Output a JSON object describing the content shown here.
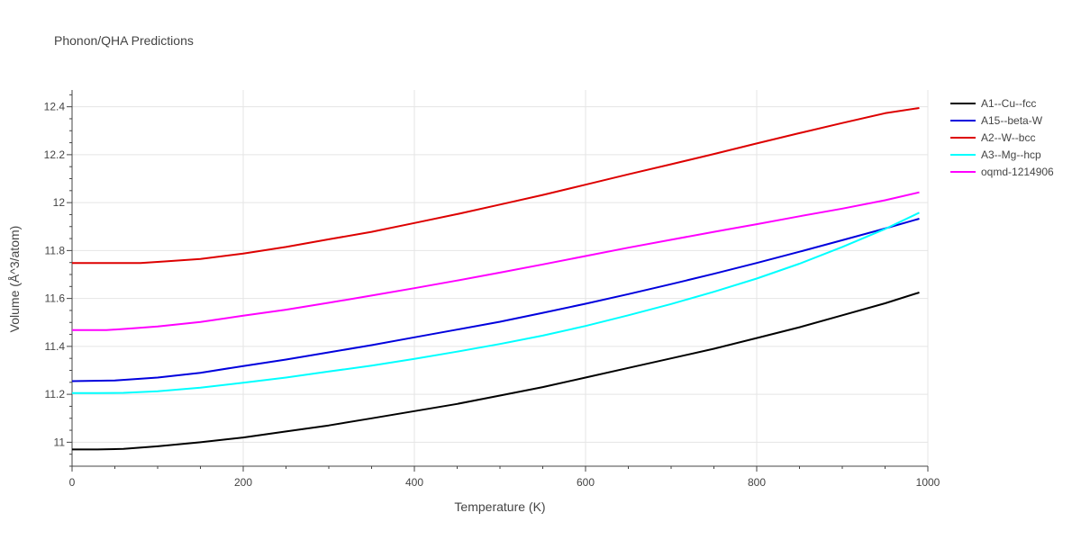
{
  "chart_data": {
    "type": "line",
    "title": "Phonon/QHA Predictions",
    "xlabel": "Temperature (K)",
    "ylabel": "Volume (Å^3/atom)",
    "xlim": [
      0,
      1000
    ],
    "ylim": [
      10.9,
      12.47
    ],
    "xticks": [
      0,
      200,
      400,
      600,
      800,
      1000
    ],
    "xtick_labels": [
      "0",
      "200",
      "400",
      "600",
      "800",
      "1000"
    ],
    "yticks": [
      11,
      11.2,
      11.4,
      11.6,
      11.8,
      12,
      12.2,
      12.4
    ],
    "ytick_labels": [
      "11",
      "11.2",
      "11.4",
      "11.6",
      "11.8",
      "12",
      "12.2",
      "12.4"
    ],
    "grid": true,
    "legend_position": "right",
    "series": [
      {
        "name": "A1--Cu--fcc",
        "color": "#000000",
        "x": [
          0,
          30,
          60,
          100,
          150,
          200,
          250,
          300,
          350,
          400,
          450,
          500,
          550,
          600,
          650,
          700,
          750,
          800,
          850,
          900,
          950,
          990
        ],
        "y": [
          10.97,
          10.97,
          10.972,
          10.983,
          11.0,
          11.02,
          11.045,
          11.07,
          11.1,
          11.13,
          11.16,
          11.195,
          11.23,
          11.27,
          11.31,
          11.35,
          11.39,
          11.435,
          11.48,
          11.53,
          11.58,
          11.625
        ]
      },
      {
        "name": "A15--beta-W",
        "color": "#0000dd",
        "x": [
          0,
          50,
          100,
          150,
          200,
          250,
          300,
          350,
          400,
          450,
          500,
          550,
          600,
          650,
          700,
          750,
          800,
          850,
          900,
          950,
          990
        ],
        "y": [
          11.255,
          11.258,
          11.27,
          11.29,
          11.318,
          11.345,
          11.375,
          11.405,
          11.438,
          11.47,
          11.503,
          11.54,
          11.578,
          11.618,
          11.66,
          11.703,
          11.748,
          11.795,
          11.843,
          11.892,
          11.933
        ]
      },
      {
        "name": "A2--W--bcc",
        "color": "#dd0000",
        "x": [
          0,
          40,
          80,
          110,
          150,
          200,
          250,
          300,
          350,
          400,
          450,
          500,
          550,
          600,
          650,
          700,
          750,
          800,
          850,
          900,
          950,
          990
        ],
        "y": [
          11.748,
          11.748,
          11.748,
          11.755,
          11.765,
          11.787,
          11.815,
          11.847,
          11.878,
          11.915,
          11.952,
          11.992,
          12.032,
          12.075,
          12.118,
          12.16,
          12.203,
          12.247,
          12.29,
          12.332,
          12.373,
          12.395
        ]
      },
      {
        "name": "A3--Mg--hcp",
        "color": "#00ffff",
        "x": [
          0,
          30,
          60,
          100,
          150,
          200,
          250,
          300,
          350,
          400,
          450,
          500,
          550,
          600,
          650,
          700,
          750,
          800,
          850,
          900,
          950,
          990
        ],
        "y": [
          11.205,
          11.205,
          11.206,
          11.213,
          11.228,
          11.248,
          11.27,
          11.295,
          11.32,
          11.348,
          11.378,
          11.41,
          11.445,
          11.485,
          11.53,
          11.577,
          11.628,
          11.683,
          11.745,
          11.815,
          11.89,
          11.958
        ]
      },
      {
        "name": "oqmd-1214906",
        "color": "#ff00ff",
        "x": [
          0,
          40,
          70,
          100,
          150,
          200,
          250,
          300,
          350,
          400,
          450,
          500,
          550,
          600,
          650,
          700,
          750,
          800,
          850,
          900,
          950,
          990
        ],
        "y": [
          11.468,
          11.468,
          11.475,
          11.483,
          11.502,
          11.528,
          11.553,
          11.582,
          11.612,
          11.643,
          11.675,
          11.708,
          11.742,
          11.777,
          11.812,
          11.845,
          11.878,
          11.91,
          11.943,
          11.975,
          12.01,
          12.043
        ]
      }
    ]
  }
}
